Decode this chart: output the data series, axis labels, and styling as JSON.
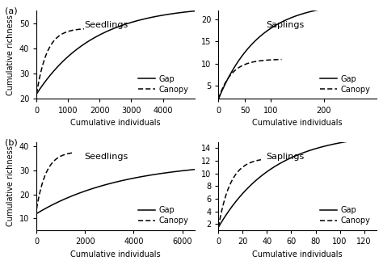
{
  "panels": [
    {
      "label": "(a)",
      "subplots": [
        {
          "title": "Seedlings",
          "gap": {
            "x_max": 5200,
            "a": 22,
            "b": 35,
            "c": 0.00055
          },
          "canopy": {
            "x_max": 1500,
            "a": 22,
            "b": 26,
            "c": 0.003
          },
          "xlim": [
            0,
            5000
          ],
          "xticks": [
            0,
            1000,
            2000,
            3000,
            4000
          ],
          "xtick_labels": [
            "0",
            "1000",
            "2000",
            "3000",
            "4000"
          ],
          "ylim": [
            20,
            55
          ],
          "yticks": [
            20,
            30,
            40,
            50
          ],
          "xlabel": "Cumulative individuals",
          "ylabel": "Cumulative richness"
        },
        {
          "title": "Saplings",
          "gap": {
            "x_max": 300,
            "a": 2,
            "b": 22,
            "c": 0.013
          },
          "canopy": {
            "x_max": 120,
            "a": 2,
            "b": 9,
            "c": 0.04
          },
          "xlim": [
            0,
            300
          ],
          "xticks": [
            0,
            50,
            100,
            200
          ],
          "xtick_labels": [
            "0",
            "50",
            "100",
            "200"
          ],
          "ylim": [
            2,
            22
          ],
          "yticks": [
            5,
            10,
            15,
            20
          ],
          "xlabel": "Cumulative individuals",
          "ylabel": ""
        }
      ]
    },
    {
      "label": "(b)",
      "subplots": [
        {
          "title": "Seedlings",
          "gap": {
            "x_max": 6500,
            "a": 12,
            "b": 22,
            "c": 0.00028
          },
          "canopy": {
            "x_max": 1500,
            "a": 14,
            "b": 24,
            "c": 0.0025
          },
          "xlim": [
            0,
            6500
          ],
          "xticks": [
            0,
            2000,
            4000,
            6000
          ],
          "xtick_labels": [
            "0",
            "2000",
            "4000",
            "6000"
          ],
          "ylim": [
            5,
            42
          ],
          "yticks": [
            10,
            20,
            30,
            40
          ],
          "xlabel": "Cumulative individuals",
          "ylabel": "Cumulative richness"
        },
        {
          "title": "Saplings",
          "gap": {
            "x_max": 130,
            "a": 1.5,
            "b": 15,
            "c": 0.022
          },
          "canopy": {
            "x_max": 35,
            "a": 1.5,
            "b": 11,
            "c": 0.1
          },
          "xlim": [
            0,
            130
          ],
          "xticks": [
            0,
            20,
            40,
            60,
            80,
            100,
            120
          ],
          "xtick_labels": [
            "0",
            "20",
            "40",
            "60",
            "80",
            "100",
            "120"
          ],
          "ylim": [
            1,
            15
          ],
          "yticks": [
            2,
            4,
            6,
            8,
            10,
            12,
            14
          ],
          "xlabel": "Cumulative individuals",
          "ylabel": ""
        }
      ]
    }
  ],
  "background_color": "#ffffff",
  "line_color": "#000000",
  "fontsize_title": 8,
  "fontsize_label": 7,
  "fontsize_tick": 7,
  "fontsize_legend": 7,
  "fontsize_panel_label": 8
}
